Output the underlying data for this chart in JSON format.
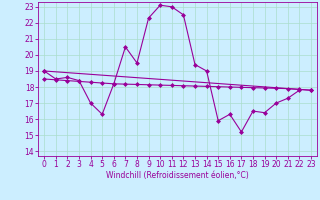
{
  "xlabel": "Windchill (Refroidissement éolien,°C)",
  "bg_color": "#cceeff",
  "line_color": "#990099",
  "grid_color": "#aaddcc",
  "xlim": [
    -0.5,
    23.5
  ],
  "ylim": [
    13.7,
    23.3
  ],
  "yticks": [
    14,
    15,
    16,
    17,
    18,
    19,
    20,
    21,
    22,
    23
  ],
  "xticks": [
    0,
    1,
    2,
    3,
    4,
    5,
    6,
    7,
    8,
    9,
    10,
    11,
    12,
    13,
    14,
    15,
    16,
    17,
    18,
    19,
    20,
    21,
    22,
    23
  ],
  "series1_x": [
    0,
    1,
    2,
    3,
    4,
    5,
    6,
    7,
    8,
    9,
    10,
    11,
    12,
    13,
    14,
    15,
    16,
    17,
    18,
    19,
    20,
    21,
    22
  ],
  "series1_y": [
    19.0,
    18.5,
    18.6,
    18.4,
    17.0,
    16.3,
    18.2,
    20.5,
    19.5,
    22.3,
    23.1,
    23.0,
    22.5,
    19.4,
    19.0,
    15.9,
    16.3,
    15.2,
    16.5,
    16.4,
    17.0,
    17.3,
    17.8
  ],
  "series2_x": [
    0,
    1,
    2,
    3,
    4,
    5,
    6,
    7,
    8,
    9,
    10,
    11,
    12,
    13,
    14,
    15,
    16,
    17,
    18,
    19,
    20,
    21,
    22,
    23
  ],
  "series2_y": [
    18.5,
    18.45,
    18.4,
    18.35,
    18.3,
    18.25,
    18.2,
    18.18,
    18.16,
    18.14,
    18.12,
    18.1,
    18.08,
    18.06,
    18.04,
    18.02,
    18.0,
    17.98,
    17.96,
    17.94,
    17.92,
    17.9,
    17.85,
    17.8
  ],
  "series3_x": [
    0,
    23
  ],
  "series3_y": [
    19.0,
    17.8
  ],
  "marker": "D",
  "markersize": 2,
  "linewidth": 0.8,
  "tick_fontsize": 5.5,
  "xlabel_fontsize": 5.5
}
